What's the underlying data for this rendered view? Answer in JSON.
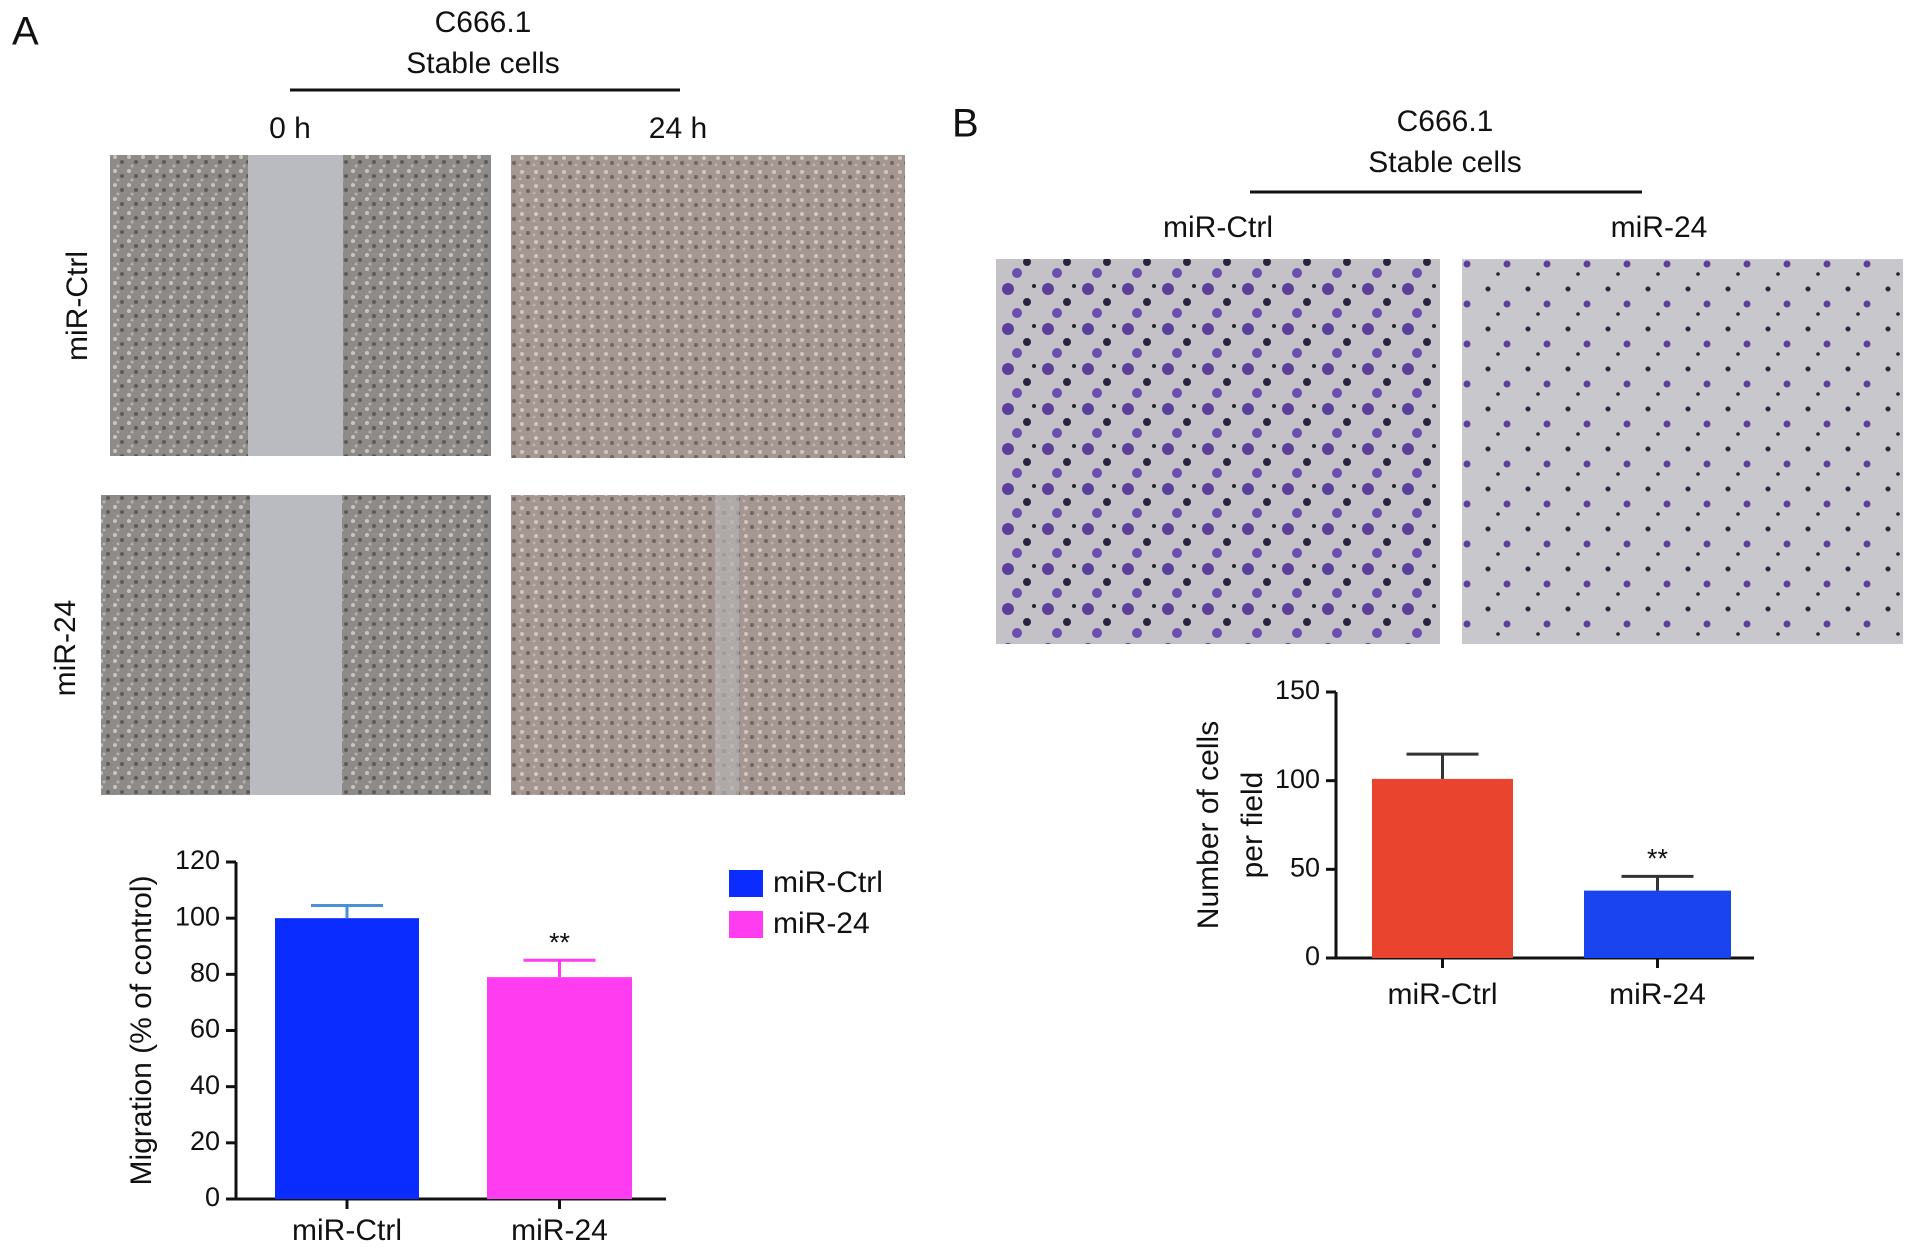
{
  "figure": {
    "panel_a": {
      "label": "A",
      "cell_line": "C666.1",
      "subtitle": "Stable cells",
      "columns": [
        "0 h",
        "24 h"
      ],
      "rows": [
        "miR-Ctrl",
        "miR-24"
      ]
    },
    "panel_b": {
      "label": "B",
      "cell_line": "C666.1",
      "subtitle": "Stable cells",
      "columns": [
        "miR-Ctrl",
        "miR-24"
      ]
    }
  },
  "chart_data": [
    {
      "type": "bar",
      "y_label": [
        "Migration (% of control)"
      ],
      "categories": [
        "miR-Ctrl",
        "miR-24"
      ],
      "values": [
        100,
        79
      ],
      "errors": [
        4.5,
        6
      ],
      "colors": [
        "#0a2cff",
        "#ff3cf0"
      ],
      "error_colors": [
        "#4a90d9",
        "#ff3cf0"
      ],
      "annotations": [
        null,
        "**"
      ],
      "ylim": [
        0,
        120
      ],
      "yticks": [
        0,
        20,
        40,
        60,
        80,
        100,
        120
      ],
      "legend": "right"
    },
    {
      "type": "bar",
      "y_label": [
        "Number of cells",
        "per field"
      ],
      "categories": [
        "miR-Ctrl",
        "miR-24"
      ],
      "values": [
        101,
        38
      ],
      "errors": [
        14,
        8
      ],
      "colors": [
        "#e8442e",
        "#1a44f0"
      ],
      "error_colors": [
        "#333333",
        "#333333"
      ],
      "annotations": [
        null,
        "**"
      ],
      "ylim": [
        0,
        150
      ],
      "yticks": [
        0,
        50,
        100,
        150
      ]
    }
  ]
}
